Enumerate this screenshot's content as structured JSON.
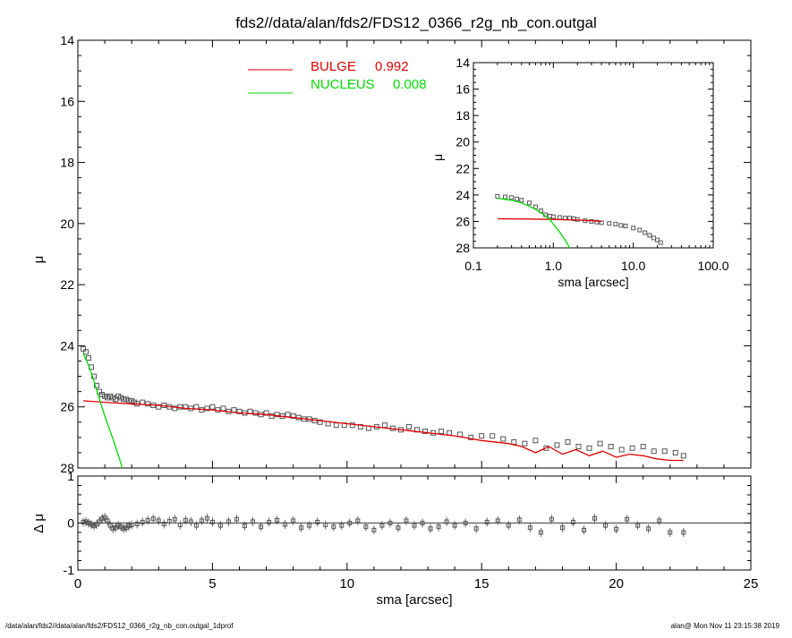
{
  "title": "fds2//data/alan/fds2/FDS12_0366_r2g_nb_con.outgal",
  "footer": {
    "left": "/data/alan/fds2//data/alan/fds2/FDS12_0366_r2g_nb_con.outgal_1dprof",
    "right": "alan@  Mon Nov 11 23:15:38 2019"
  },
  "colors": {
    "bulge": "#e00000",
    "nucleus": "#00dd00",
    "data": "#555555",
    "axis": "#000000"
  },
  "chart_data": [
    {
      "id": "main",
      "type": "scatter",
      "ylabel": "μ",
      "xlim": [
        0,
        25
      ],
      "ylim": [
        28,
        14
      ],
      "y_inverted": true,
      "yticks": [
        14,
        16,
        18,
        20,
        22,
        24,
        26,
        28
      ],
      "legend": {
        "placement": "top-center",
        "entries": [
          {
            "label": "BULGE",
            "value": "0.992",
            "color": "#e00000"
          },
          {
            "label": "NUCLEUS",
            "value": "0.008",
            "color": "#00dd00"
          }
        ]
      },
      "series": [
        {
          "name": "data",
          "style": "markers",
          "x": [
            0.2,
            0.3,
            0.4,
            0.5,
            0.6,
            0.7,
            0.8,
            0.9,
            1.0,
            1.1,
            1.2,
            1.3,
            1.4,
            1.5,
            1.6,
            1.7,
            1.8,
            1.9,
            2.0,
            2.1,
            2.2,
            2.4,
            2.6,
            2.8,
            3.0,
            3.2,
            3.4,
            3.6,
            3.8,
            4.0,
            4.2,
            4.4,
            4.6,
            4.8,
            5.0,
            5.2,
            5.4,
            5.6,
            5.8,
            6.0,
            6.2,
            6.4,
            6.6,
            6.8,
            7.0,
            7.2,
            7.4,
            7.6,
            7.8,
            8.0,
            8.2,
            8.4,
            8.6,
            8.8,
            9.0,
            9.3,
            9.6,
            9.9,
            10.2,
            10.5,
            10.8,
            11.1,
            11.4,
            11.7,
            12.0,
            12.3,
            12.6,
            12.9,
            13.2,
            13.5,
            13.8,
            14.2,
            14.6,
            15.0,
            15.4,
            15.8,
            16.2,
            16.6,
            17.0,
            17.4,
            17.8,
            18.2,
            18.6,
            19.0,
            19.4,
            19.8,
            20.2,
            20.6,
            21.0,
            21.4,
            21.8,
            22.2,
            22.5
          ],
          "y": [
            24.1,
            24.2,
            24.4,
            24.7,
            25.0,
            25.3,
            25.5,
            25.6,
            25.65,
            25.7,
            25.65,
            25.7,
            25.75,
            25.65,
            25.7,
            25.75,
            25.75,
            25.8,
            25.8,
            25.85,
            25.9,
            25.85,
            25.9,
            25.95,
            26.0,
            25.95,
            26.0,
            26.05,
            26.0,
            26.0,
            26.05,
            26.0,
            26.1,
            26.05,
            26.0,
            26.1,
            26.05,
            26.15,
            26.1,
            26.15,
            26.2,
            26.15,
            26.2,
            26.25,
            26.2,
            26.3,
            26.25,
            26.3,
            26.25,
            26.3,
            26.35,
            26.4,
            26.4,
            26.45,
            26.5,
            26.55,
            26.6,
            26.6,
            26.6,
            26.65,
            26.7,
            26.65,
            26.6,
            26.7,
            26.75,
            26.65,
            26.75,
            26.8,
            26.85,
            26.8,
            26.85,
            26.9,
            27.0,
            26.95,
            26.95,
            27.05,
            27.15,
            27.2,
            27.1,
            27.35,
            27.25,
            27.15,
            27.3,
            27.35,
            27.2,
            27.3,
            27.4,
            27.35,
            27.3,
            27.45,
            27.45,
            27.5,
            27.6
          ]
        },
        {
          "name": "BULGE",
          "style": "line",
          "color": "#e00000",
          "x": [
            0.2,
            1.0,
            2.0,
            3.0,
            4.0,
            5.0,
            6.0,
            7.0,
            8.0,
            9.0,
            10.0,
            11.0,
            12.0,
            13.0,
            14.0,
            15.0,
            16.0,
            16.5,
            17.0,
            17.5,
            18.0,
            18.5,
            19.0,
            19.5,
            20.0,
            20.5,
            21.0,
            21.5,
            22.0,
            22.5
          ],
          "y": [
            25.8,
            25.85,
            25.9,
            25.95,
            26.05,
            26.1,
            26.2,
            26.25,
            26.35,
            26.45,
            26.55,
            26.65,
            26.75,
            26.85,
            26.95,
            27.1,
            27.2,
            27.3,
            27.5,
            27.3,
            27.55,
            27.4,
            27.6,
            27.45,
            27.65,
            27.55,
            27.6,
            27.7,
            27.75,
            27.75
          ]
        },
        {
          "name": "NUCLEUS",
          "style": "line",
          "color": "#00dd00",
          "x": [
            0.2,
            0.4,
            0.6,
            0.8,
            1.0,
            1.2,
            1.4,
            1.6,
            1.65
          ],
          "y": [
            24.25,
            24.65,
            25.15,
            25.75,
            26.3,
            26.8,
            27.3,
            27.85,
            28.0
          ]
        }
      ]
    },
    {
      "id": "inset",
      "type": "scatter",
      "xlabel": "sma [arcsec]",
      "ylabel": "μ",
      "x_scale": "log",
      "xlim": [
        0.1,
        100
      ],
      "ylim": [
        28,
        14
      ],
      "y_inverted": true,
      "xticks": [
        "0.1",
        "1.0",
        "10.0",
        "100.0"
      ],
      "yticks": [
        14,
        16,
        18,
        20,
        22,
        24,
        26,
        28
      ],
      "series": [
        {
          "name": "data",
          "style": "markers",
          "x": [
            0.2,
            0.25,
            0.3,
            0.35,
            0.4,
            0.5,
            0.6,
            0.7,
            0.8,
            0.9,
            1.0,
            1.2,
            1.4,
            1.6,
            1.8,
            2.0,
            2.5,
            3.0,
            3.5,
            4.0,
            5.0,
            6.0,
            7.0,
            8.0,
            10.0,
            12.0,
            14.0,
            16.0,
            18.0,
            20.0,
            22.0
          ],
          "y": [
            24.1,
            24.15,
            24.2,
            24.3,
            24.4,
            24.6,
            24.9,
            25.2,
            25.5,
            25.6,
            25.65,
            25.7,
            25.75,
            25.75,
            25.8,
            25.85,
            25.95,
            26.0,
            26.05,
            26.1,
            26.15,
            26.2,
            26.3,
            26.35,
            26.5,
            26.65,
            26.85,
            27.05,
            27.25,
            27.4,
            27.6
          ]
        },
        {
          "name": "BULGE",
          "style": "line",
          "color": "#e00000",
          "x": [
            0.2,
            0.5,
            1.0,
            2.0,
            3.0,
            4.0
          ],
          "y": [
            25.8,
            25.82,
            25.85,
            25.9,
            25.95,
            26.0
          ]
        },
        {
          "name": "NUCLEUS",
          "style": "line",
          "color": "#00dd00",
          "x": [
            0.2,
            0.3,
            0.4,
            0.5,
            0.6,
            0.7,
            0.8,
            0.9,
            1.0,
            1.2,
            1.4,
            1.6
          ],
          "y": [
            24.25,
            24.4,
            24.6,
            24.85,
            25.1,
            25.35,
            25.6,
            25.85,
            26.2,
            26.8,
            27.4,
            28.0
          ]
        }
      ]
    },
    {
      "id": "residual",
      "type": "scatter",
      "xlabel": "sma [arcsec]",
      "ylabel": "Δ μ",
      "xlim": [
        0,
        25
      ],
      "ylim": [
        -1,
        1
      ],
      "xticks": [
        0,
        5,
        10,
        15,
        20,
        25
      ],
      "yticks": [
        -1,
        0,
        1
      ],
      "series": [
        {
          "name": "residual",
          "style": "markers-errorbars",
          "x": [
            0.2,
            0.3,
            0.4,
            0.5,
            0.6,
            0.7,
            0.8,
            0.9,
            1.0,
            1.1,
            1.2,
            1.3,
            1.4,
            1.5,
            1.6,
            1.7,
            1.8,
            1.9,
            2.0,
            2.2,
            2.4,
            2.6,
            2.8,
            3.0,
            3.2,
            3.4,
            3.6,
            3.8,
            4.0,
            4.2,
            4.4,
            4.6,
            4.8,
            5.0,
            5.3,
            5.6,
            5.9,
            6.2,
            6.5,
            6.8,
            7.1,
            7.4,
            7.7,
            8.0,
            8.3,
            8.6,
            8.9,
            9.2,
            9.5,
            9.8,
            10.1,
            10.4,
            10.7,
            11.0,
            11.3,
            11.6,
            11.9,
            12.2,
            12.5,
            12.8,
            13.1,
            13.4,
            13.7,
            14.0,
            14.4,
            14.8,
            15.2,
            15.6,
            16.0,
            16.4,
            16.8,
            17.2,
            17.6,
            18.0,
            18.4,
            18.8,
            19.2,
            19.6,
            20.0,
            20.4,
            20.8,
            21.2,
            21.6,
            22.0,
            22.5
          ],
          "y": [
            0.02,
            0.03,
            0.0,
            -0.03,
            -0.06,
            -0.03,
            0.03,
            0.09,
            0.12,
            0.05,
            -0.05,
            -0.12,
            -0.1,
            -0.05,
            -0.08,
            -0.12,
            -0.1,
            -0.06,
            -0.04,
            -0.02,
            0.02,
            0.06,
            0.09,
            0.05,
            -0.02,
            0.04,
            0.08,
            -0.04,
            0.06,
            0.03,
            -0.05,
            0.05,
            0.1,
            0.02,
            -0.05,
            0.03,
            0.08,
            -0.06,
            0.03,
            -0.08,
            0.02,
            0.06,
            -0.03,
            0.05,
            -0.1,
            -0.05,
            0.02,
            -0.04,
            -0.08,
            -0.05,
            0.0,
            0.05,
            -0.08,
            -0.15,
            -0.05,
            0.0,
            -0.1,
            0.05,
            -0.05,
            0.0,
            -0.12,
            -0.08,
            0.03,
            -0.05,
            0.0,
            -0.12,
            0.02,
            0.05,
            -0.05,
            0.07,
            -0.1,
            -0.2,
            0.08,
            -0.1,
            0.02,
            -0.15,
            0.1,
            -0.05,
            -0.13,
            0.08,
            -0.05,
            -0.12,
            0.05,
            -0.2,
            -0.2
          ]
        }
      ]
    }
  ]
}
